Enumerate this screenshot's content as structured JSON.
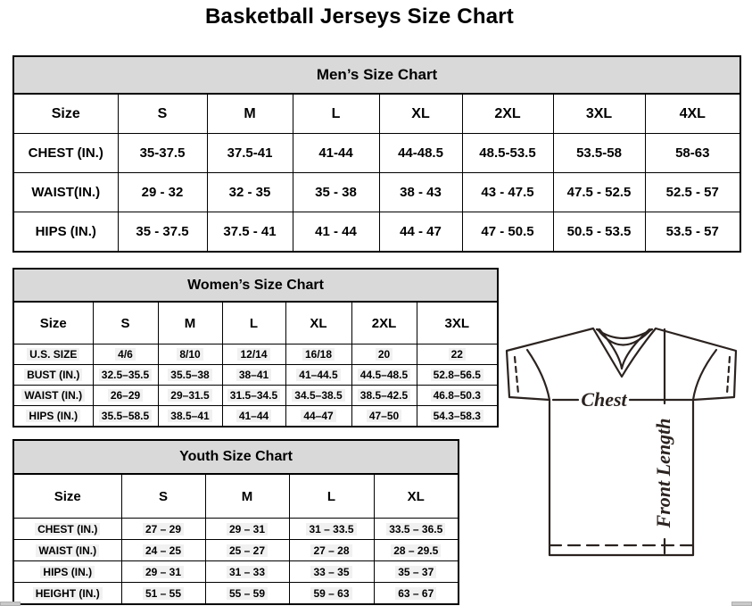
{
  "page_title": "Basketball Jerseys Size Chart",
  "tables": {
    "men": {
      "title": "Men’s Size Chart",
      "columns": [
        "Size",
        "S",
        "M",
        "L",
        "XL",
        "2XL",
        "3XL",
        "4XL"
      ],
      "rows": [
        {
          "label": "CHEST (IN.)",
          "values": [
            "35-37.5",
            "37.5-41",
            "41-44",
            "44-48.5",
            "48.5-53.5",
            "53.5-58",
            "58-63"
          ]
        },
        {
          "label": "WAIST(IN.)",
          "values": [
            "29 - 32",
            "32 - 35",
            "35 - 38",
            "38 - 43",
            "43 - 47.5",
            "47.5 - 52.5",
            "52.5 - 57"
          ]
        },
        {
          "label": "HIPS (IN.)",
          "values": [
            "35 - 37.5",
            "37.5 - 41",
            "41 - 44",
            "44 - 47",
            "47 - 50.5",
            "50.5 - 53.5",
            "53.5 - 57"
          ]
        }
      ]
    },
    "women": {
      "title": "Women’s Size Chart",
      "columns": [
        "Size",
        "S",
        "M",
        "L",
        "XL",
        "2XL",
        "3XL"
      ],
      "rows": [
        {
          "label": "U.S. SIZE",
          "values": [
            "4/6",
            "8/10",
            "12/14",
            "16/18",
            "20",
            "22"
          ]
        },
        {
          "label": "BUST (IN.)",
          "values": [
            "32.5–35.5",
            "35.5–38",
            "38–41",
            "41–44.5",
            "44.5–48.5",
            "52.8–56.5"
          ]
        },
        {
          "label": "WAIST (IN.)",
          "values": [
            "26–29",
            "29–31.5",
            "31.5–34.5",
            "34.5–38.5",
            "38.5–42.5",
            "46.8–50.3"
          ]
        },
        {
          "label": "HIPS (IN.)",
          "values": [
            "35.5–58.5",
            "38.5–41",
            "41–44",
            "44–47",
            "47–50",
            "54.3–58.3"
          ]
        }
      ]
    },
    "youth": {
      "title": "Youth Size Chart",
      "columns": [
        "Size",
        "S",
        "M",
        "L",
        "XL"
      ],
      "rows": [
        {
          "label": "CHEST (IN.)",
          "values": [
            "27 – 29",
            "29 – 31",
            "31 – 33.5",
            "33.5 – 36.5"
          ]
        },
        {
          "label": "WAIST (IN.)",
          "values": [
            "24 – 25",
            "25 – 27",
            "27 – 28",
            "28 – 29.5"
          ]
        },
        {
          "label": "HIPS (IN.)",
          "values": [
            "29 – 31",
            "31 – 33",
            "33 – 35",
            "35 – 37"
          ]
        },
        {
          "label": "HEIGHT (IN.)",
          "values": [
            "51 – 55",
            "55 – 59",
            "59 – 63",
            "63 – 67"
          ]
        }
      ]
    }
  },
  "diagram": {
    "chest_label": "Chest",
    "front_length_label": "Front Length"
  },
  "colors": {
    "table_header_bg": "#d9d9d9",
    "table_border": "#000000",
    "jersey_stroke": "#2b2320",
    "value_highlight": "#f1f1f1"
  }
}
